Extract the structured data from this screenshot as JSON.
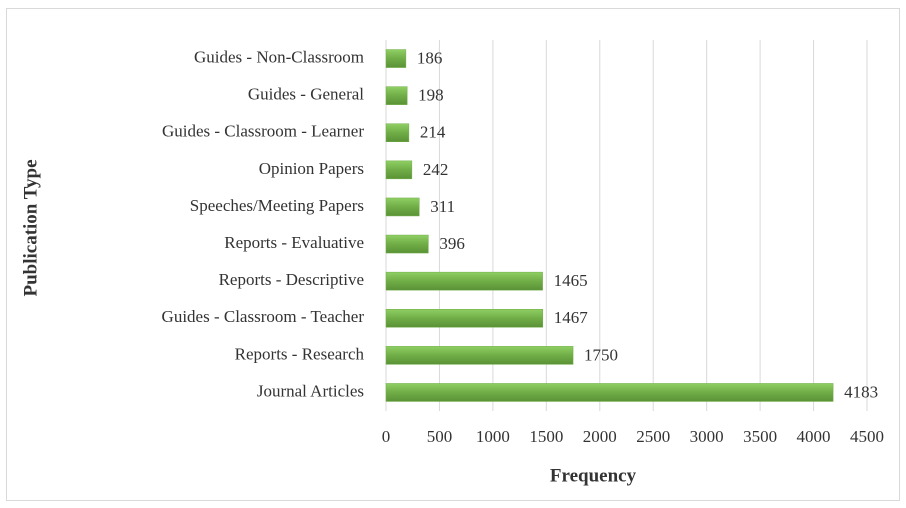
{
  "chart_data": {
    "type": "bar",
    "orientation": "horizontal",
    "xlabel": "Frequency",
    "ylabel": "Publication Type",
    "categories": [
      "Guides - Non-Classroom",
      "Guides - General",
      "Guides - Classroom - Learner",
      "Opinion Papers",
      "Speeches/Meeting Papers",
      "Reports - Evaluative",
      "Reports - Descriptive",
      "Guides - Classroom - Teacher",
      "Reports - Research",
      "Journal Articles"
    ],
    "values": [
      186,
      198,
      214,
      242,
      311,
      396,
      1465,
      1467,
      1750,
      4183
    ],
    "color": "#70ad47",
    "xlim": [
      0,
      4500
    ],
    "xticks": [
      0,
      500,
      1000,
      1500,
      2000,
      2500,
      3000,
      3500,
      4000,
      4500
    ],
    "grid": true
  }
}
